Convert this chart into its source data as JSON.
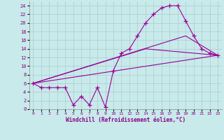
{
  "xlabel": "Windchill (Refroidissement éolien,°C)",
  "background_color": "#c8eaea",
  "grid_color": "#b0d0d0",
  "line_color": "#990099",
  "xlim": [
    -0.5,
    23.5
  ],
  "ylim": [
    0,
    25
  ],
  "xticks": [
    0,
    1,
    2,
    3,
    4,
    5,
    6,
    7,
    8,
    9,
    10,
    11,
    12,
    13,
    14,
    15,
    16,
    17,
    18,
    19,
    20,
    21,
    22,
    23
  ],
  "yticks": [
    0,
    2,
    4,
    6,
    8,
    10,
    12,
    14,
    16,
    18,
    20,
    22,
    24
  ],
  "lines": [
    {
      "x": [
        0,
        1,
        2,
        3,
        4,
        5,
        6,
        7,
        8,
        9,
        10,
        11,
        12,
        13,
        14,
        15,
        16,
        17,
        18,
        19,
        20,
        21,
        22,
        23
      ],
      "y": [
        6,
        5,
        5,
        5,
        5,
        1,
        3,
        1,
        5,
        0.5,
        9,
        13,
        14,
        17,
        20,
        22,
        23.5,
        24,
        24,
        20.5,
        17,
        14,
        13,
        12.5
      ],
      "marker": true
    },
    {
      "x": [
        0,
        23
      ],
      "y": [
        6,
        12.5
      ],
      "marker": false
    },
    {
      "x": [
        0,
        14,
        23
      ],
      "y": [
        6,
        14,
        12.5
      ],
      "marker": false
    },
    {
      "x": [
        0,
        19,
        23
      ],
      "y": [
        6,
        17,
        12.5
      ],
      "marker": false
    }
  ]
}
